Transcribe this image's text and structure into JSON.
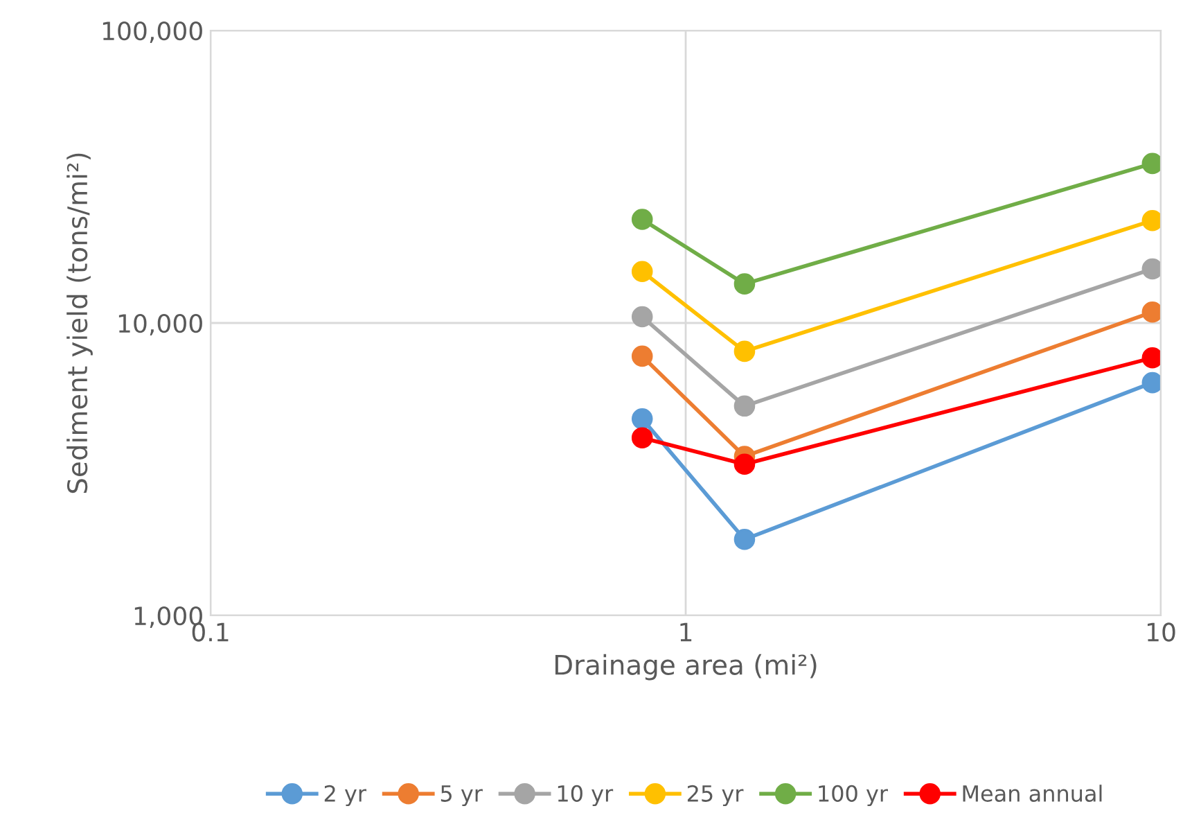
{
  "chart_data": {
    "type": "line",
    "xlabel": "Drainage area (mi²)",
    "ylabel": "Sediment yield (tons/mi²)",
    "log": "xy",
    "grid": true,
    "legend": "bottom",
    "marker": "circle",
    "line_style": "solid",
    "xlim": [
      0.1,
      10
    ],
    "xticks": [
      0.1,
      1,
      10
    ],
    "ylim": [
      1000,
      100000
    ],
    "yticks": [
      {
        "value": 1000,
        "label": "1,000"
      },
      {
        "value": 10000,
        "label": "10,000"
      },
      {
        "value": 100000,
        "label": "100,000"
      }
    ],
    "x": [
      0.81,
      1.33,
      9.6
    ],
    "series": [
      {
        "name": "2 yr",
        "color": "#5b9bd5",
        "values": [
          4700,
          1820,
          6250
        ]
      },
      {
        "name": "5 yr",
        "color": "#ed7d31",
        "values": [
          7700,
          3500,
          10900
        ]
      },
      {
        "name": "10 yr",
        "color": "#a5a5a5",
        "values": [
          10500,
          5200,
          15300
        ]
      },
      {
        "name": "25 yr",
        "color": "#ffc000",
        "values": [
          15000,
          8000,
          22400
        ]
      },
      {
        "name": "100 yr",
        "color": "#70ad47",
        "values": [
          22600,
          13600,
          35100
        ]
      },
      {
        "name": "Mean annual",
        "color": "#ff0000",
        "values": [
          4050,
          3290,
          7600
        ]
      }
    ]
  }
}
